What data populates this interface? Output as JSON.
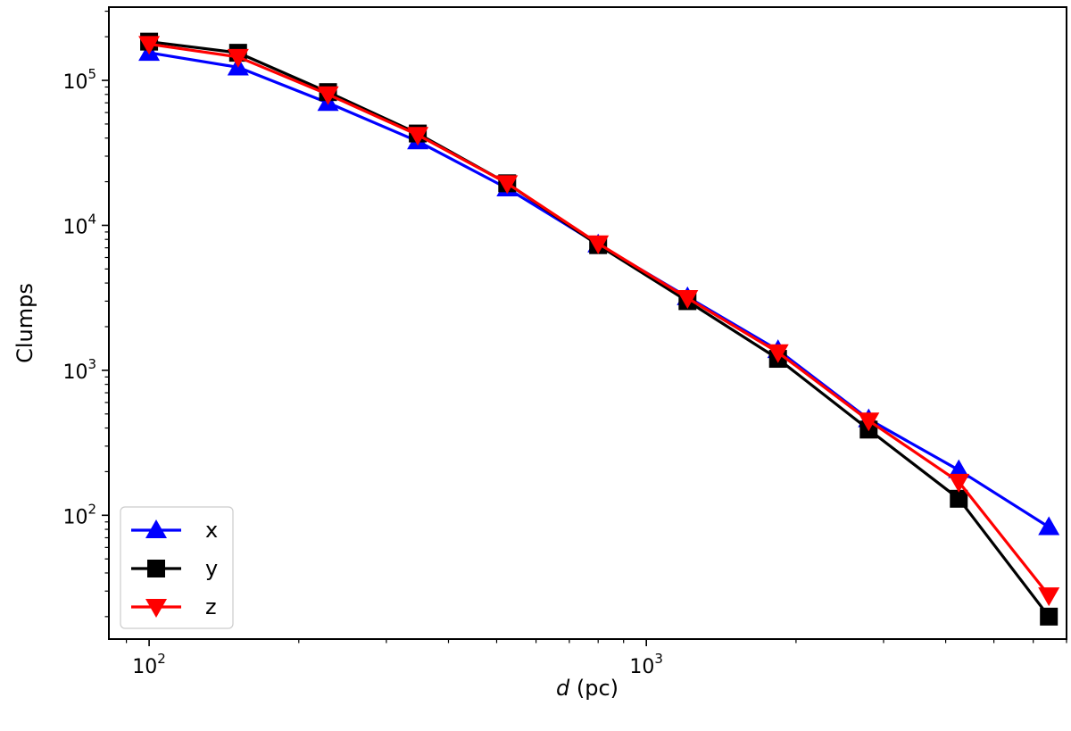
{
  "chart_data": {
    "type": "line",
    "title": "",
    "xlabel_italic": "d",
    "xlabel_rest": " (pc)",
    "ylabel": "Clumps",
    "xscale": "log",
    "yscale": "log",
    "xlim": [
      83,
      7000
    ],
    "ylim": [
      14,
      320000
    ],
    "grid": false,
    "legend_position": "lower-left",
    "x_ticks": [
      {
        "value": 100,
        "exp": "2"
      },
      {
        "value": 1000,
        "exp": "3"
      }
    ],
    "y_ticks": [
      {
        "value": 100,
        "exp": "2"
      },
      {
        "value": 1000,
        "exp": "3"
      },
      {
        "value": 10000,
        "exp": "4"
      },
      {
        "value": 100000,
        "exp": "5"
      }
    ],
    "tick_base": "10",
    "x": [
      100,
      151,
      229,
      347,
      525,
      800,
      1210,
      1840,
      2800,
      4250,
      6450
    ],
    "series": [
      {
        "name": "x",
        "color": "#0000ff",
        "marker": "triangle-up",
        "values": [
          155000,
          123000,
          70000,
          38000,
          18000,
          7400,
          3200,
          1380,
          460,
          205,
          83
        ]
      },
      {
        "name": "y",
        "color": "#000000",
        "marker": "square",
        "values": [
          185000,
          155000,
          83000,
          43000,
          19500,
          7300,
          3000,
          1200,
          390,
          130,
          20
        ]
      },
      {
        "name": "z",
        "color": "#ff0000",
        "marker": "triangle-down",
        "values": [
          178000,
          145000,
          80000,
          42000,
          19500,
          7500,
          3150,
          1330,
          450,
          170,
          28
        ]
      }
    ]
  }
}
